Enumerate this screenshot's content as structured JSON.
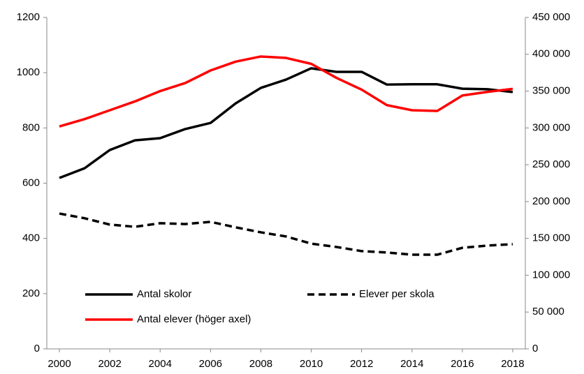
{
  "chart_data": {
    "type": "line",
    "x": [
      2000,
      2001,
      2002,
      2003,
      2004,
      2005,
      2006,
      2007,
      2008,
      2009,
      2010,
      2011,
      2012,
      2013,
      2014,
      2015,
      2016,
      2017,
      2018
    ],
    "xlim": [
      1999.5,
      2018.5
    ],
    "xticks": [
      2000,
      2002,
      2004,
      2006,
      2008,
      2010,
      2012,
      2014,
      2016,
      2018
    ],
    "ylim": [
      0,
      1200
    ],
    "yticks": [
      0,
      200,
      400,
      600,
      800,
      1000,
      1200
    ],
    "y2lim": [
      0,
      450000
    ],
    "y2ticks": [
      0,
      {
        "value": 50000,
        "label": "50 000"
      },
      {
        "value": 100000,
        "label": "100 000"
      },
      {
        "value": 150000,
        "label": "150 000"
      },
      {
        "value": 200000,
        "label": "200 000"
      },
      {
        "value": 250000,
        "label": "250 000"
      },
      {
        "value": 300000,
        "label": "300 000"
      },
      {
        "value": 350000,
        "label": "350 000"
      },
      {
        "value": 400000,
        "label": "400 000"
      },
      {
        "value": 450000,
        "label": "450 000"
      }
    ],
    "grid": false,
    "series": [
      {
        "name": "Antal skolor",
        "color": "#000000",
        "values": [
          619,
          654,
          720,
          755,
          763,
          796,
          818,
          889,
          945,
          975,
          1016,
          1003,
          1003,
          957,
          958,
          958,
          942,
          940,
          930
        ]
      },
      {
        "name": "Elever per skola",
        "color": "#000000",
        "dash": true,
        "values": [
          490,
          473,
          450,
          442,
          455,
          452,
          460,
          440,
          422,
          407,
          381,
          369,
          354,
          349,
          341,
          341,
          366,
          374,
          379
        ]
      },
      {
        "name": "Antal elever (höger axel)",
        "color": "#ff0000",
        "axis": "y2",
        "values": [
          302000,
          312000,
          324000,
          336000,
          350000,
          361000,
          378000,
          390000,
          397000,
          395000,
          387000,
          368000,
          352000,
          331000,
          324000,
          323000,
          344000,
          349000,
          353000
        ]
      }
    ]
  }
}
